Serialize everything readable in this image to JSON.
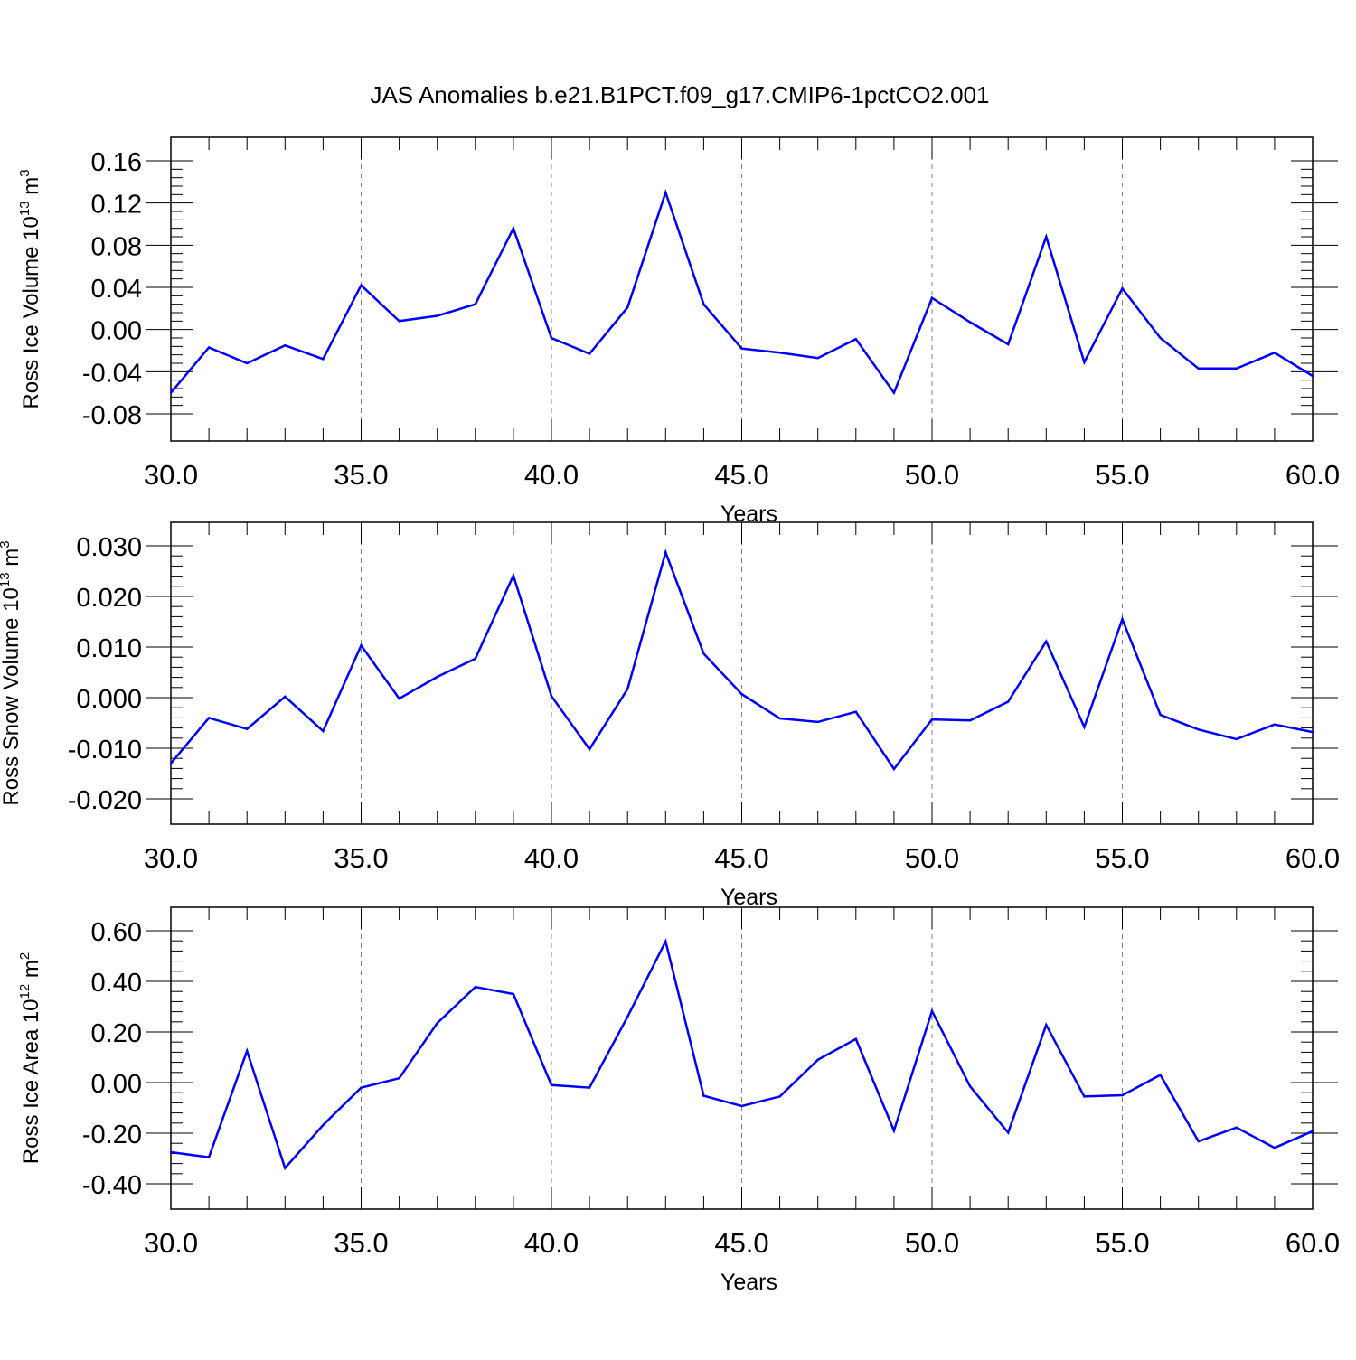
{
  "title": "JAS Anomalies b.e21.B1PCT.f09_g17.CMIP6-1pctCO2.001",
  "colors": {
    "line": "#0000ff",
    "axis": "#000000",
    "grid": "#808080"
  },
  "chart_data": [
    {
      "type": "line",
      "ylabel_text": "Ross Ice Volume 10",
      "ylabel_exp": "13",
      "ylabel_unit": " m",
      "ylabel_unit_exp": "3",
      "xlabel": "Years",
      "xlim": [
        30,
        60
      ],
      "ylim": [
        -0.08,
        0.16
      ],
      "yticks": [
        "0.16",
        "0.12",
        "0.08",
        "0.04",
        "0.00",
        "-0.04",
        "-0.08"
      ],
      "yticks_values": [
        0.16,
        0.12,
        0.08,
        0.04,
        0.0,
        -0.04,
        -0.08
      ],
      "xticks": [
        "30.0",
        "35.0",
        "40.0",
        "45.0",
        "50.0",
        "55.0",
        "60.0"
      ],
      "xticks_values": [
        30,
        35,
        40,
        45,
        50,
        55,
        60
      ],
      "x": [
        30,
        31,
        32,
        33,
        34,
        35,
        36,
        37,
        38,
        39,
        40,
        41,
        42,
        43,
        44,
        45,
        46,
        47,
        48,
        49,
        50,
        51,
        52,
        53,
        54,
        55,
        56,
        57,
        58,
        59,
        60
      ],
      "y": [
        -0.06,
        -0.017,
        -0.032,
        -0.015,
        -0.028,
        0.042,
        0.008,
        0.013,
        0.024,
        0.096,
        -0.008,
        -0.023,
        0.021,
        0.13,
        0.024,
        -0.018,
        -0.022,
        -0.027,
        -0.009,
        -0.06,
        0.03,
        0.007,
        -0.014,
        0.088,
        -0.031,
        0.039,
        -0.008,
        -0.037,
        -0.037,
        -0.022,
        -0.044
      ]
    },
    {
      "type": "line",
      "ylabel_text": "Ross Snow Volume 10",
      "ylabel_exp": "13",
      "ylabel_unit": " m",
      "ylabel_unit_exp": "3",
      "xlabel": "Years",
      "xlim": [
        30,
        60
      ],
      "ylim": [
        -0.02,
        0.03
      ],
      "yticks": [
        "0.030",
        "0.020",
        "0.010",
        "0.000",
        "-0.010",
        "-0.020"
      ],
      "yticks_values": [
        0.03,
        0.02,
        0.01,
        0.0,
        -0.01,
        -0.02
      ],
      "xticks": [
        "30.0",
        "35.0",
        "40.0",
        "45.0",
        "50.0",
        "55.0",
        "60.0"
      ],
      "xticks_values": [
        30,
        35,
        40,
        45,
        50,
        55,
        60
      ],
      "x": [
        30,
        31,
        32,
        33,
        34,
        35,
        36,
        37,
        38,
        39,
        40,
        41,
        42,
        43,
        44,
        45,
        46,
        47,
        48,
        49,
        50,
        51,
        52,
        53,
        54,
        55,
        56,
        57,
        58,
        59,
        60
      ],
      "y": [
        -0.013,
        -0.004,
        -0.0062,
        0.0002,
        -0.0066,
        0.0103,
        -0.0002,
        0.0041,
        0.0077,
        0.0241,
        0.0003,
        -0.0102,
        0.0017,
        0.0287,
        0.0087,
        0.0007,
        -0.0041,
        -0.0048,
        -0.0028,
        -0.0141,
        -0.0043,
        -0.0045,
        -0.0008,
        0.0111,
        -0.0058,
        0.0155,
        -0.0034,
        -0.0063,
        -0.0082,
        -0.0053,
        -0.0068
      ]
    },
    {
      "type": "line",
      "ylabel_text": "Ross Ice Area 10",
      "ylabel_exp": "12",
      "ylabel_unit": " m",
      "ylabel_unit_exp": "2",
      "xlabel": "Years",
      "xlim": [
        30,
        60
      ],
      "ylim": [
        -0.4,
        0.6
      ],
      "yticks": [
        "0.60",
        "0.40",
        "0.20",
        "0.00",
        "-0.20",
        "-0.40"
      ],
      "yticks_values": [
        0.6,
        0.4,
        0.2,
        0.0,
        -0.2,
        -0.4
      ],
      "xticks": [
        "30.0",
        "35.0",
        "40.0",
        "45.0",
        "50.0",
        "55.0",
        "60.0"
      ],
      "xticks_values": [
        30,
        35,
        40,
        45,
        50,
        55,
        60
      ],
      "x": [
        30,
        31,
        32,
        33,
        34,
        35,
        36,
        37,
        38,
        39,
        40,
        41,
        42,
        43,
        44,
        45,
        46,
        47,
        48,
        49,
        50,
        51,
        52,
        53,
        54,
        55,
        56,
        57,
        58,
        59,
        60
      ],
      "y": [
        -0.275,
        -0.295,
        0.125,
        -0.338,
        -0.168,
        -0.02,
        0.017,
        0.235,
        0.378,
        0.35,
        -0.01,
        -0.02,
        0.26,
        0.558,
        -0.052,
        -0.093,
        -0.055,
        0.09,
        0.172,
        -0.19,
        0.283,
        -0.015,
        -0.198,
        0.228,
        -0.055,
        -0.05,
        0.03,
        -0.232,
        -0.178,
        -0.258,
        -0.192
      ]
    }
  ]
}
